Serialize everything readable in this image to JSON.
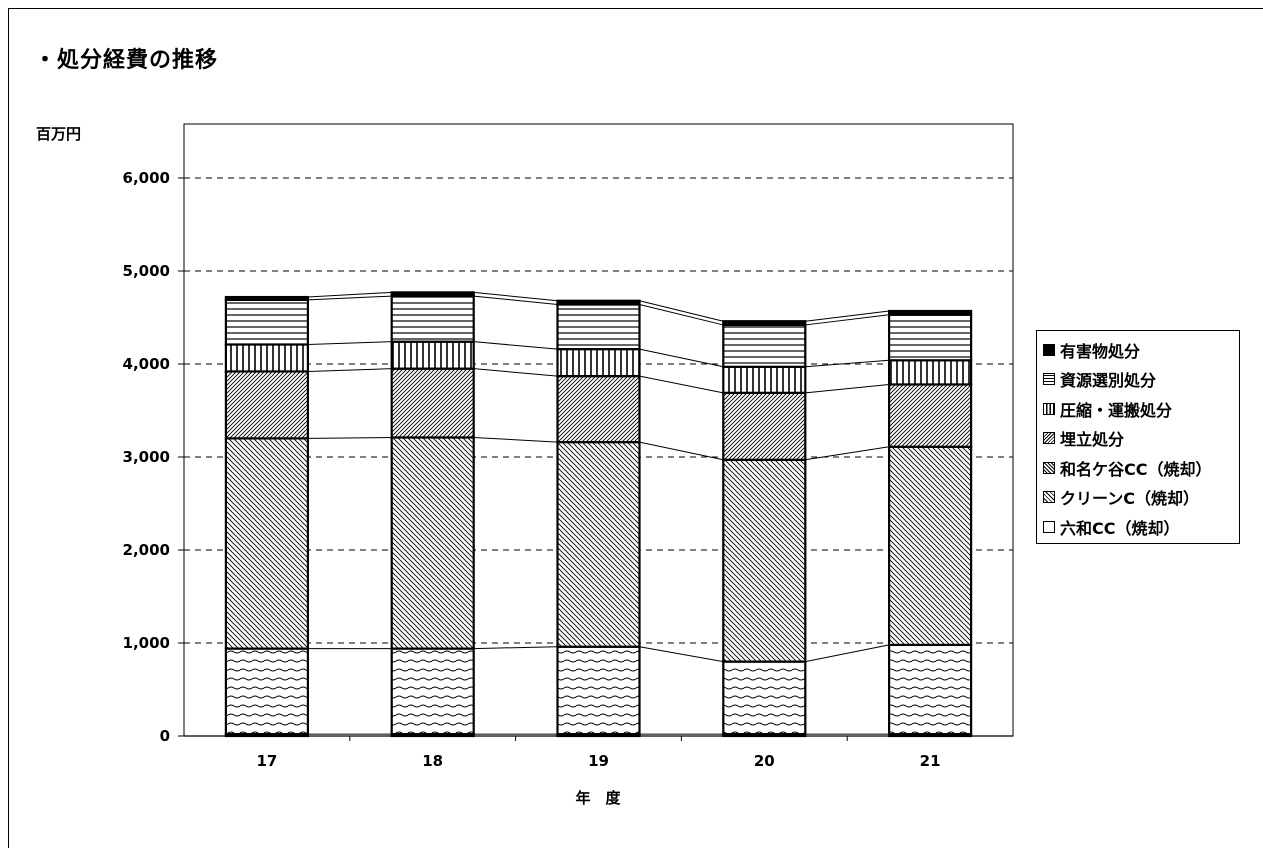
{
  "header": {
    "title": "・処分経費の推移"
  },
  "chart_data": {
    "type": "bar",
    "stacked": true,
    "title": "・処分経費の推移",
    "ylabel": "百万円",
    "xlabel": "年　度",
    "ylim": [
      0,
      6000
    ],
    "yticks": [
      "0",
      "1,000",
      "2,000",
      "3,000",
      "4,000",
      "5,000",
      "6,000"
    ],
    "categories": [
      "17",
      "18",
      "19",
      "20",
      "21"
    ],
    "grid": "horizontal dashed",
    "legend_position": "right",
    "series": [
      {
        "name": "六和CC（焼却）",
        "values": [
          20,
          20,
          20,
          20,
          20
        ],
        "pattern": "blank"
      },
      {
        "name": "クリーンC（焼却）",
        "values": [
          920,
          920,
          940,
          780,
          960
        ],
        "pattern": "wave"
      },
      {
        "name": "和名ケ谷CC（焼却）",
        "values": [
          2260,
          2270,
          2200,
          2170,
          2130
        ],
        "pattern": "back-diagonal"
      },
      {
        "name": "埋立処分",
        "values": [
          720,
          740,
          710,
          720,
          670
        ],
        "pattern": "forward-diagonal"
      },
      {
        "name": "圧縮・運搬処分",
        "values": [
          290,
          290,
          290,
          280,
          260
        ],
        "pattern": "vertical"
      },
      {
        "name": "資源選別処分",
        "values": [
          480,
          490,
          480,
          450,
          490
        ],
        "pattern": "horizontal"
      },
      {
        "name": "有害物処分",
        "values": [
          30,
          40,
          40,
          40,
          40
        ],
        "pattern": "solid"
      }
    ]
  }
}
